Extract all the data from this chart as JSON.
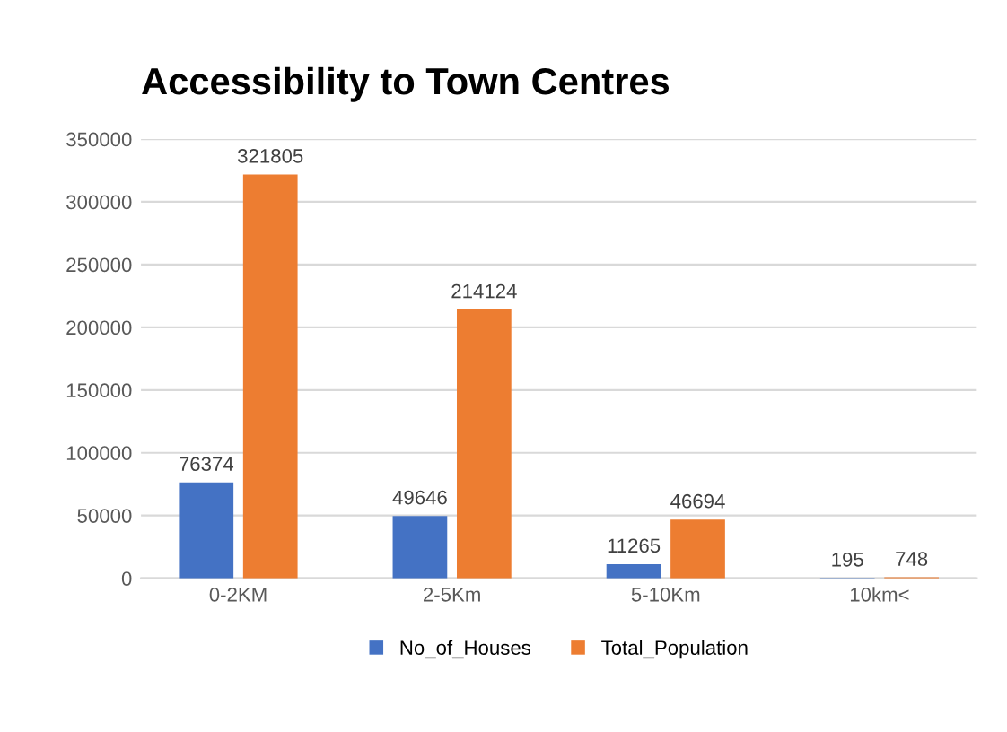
{
  "chart_data": {
    "type": "bar",
    "title": "Accessibility to Town Centres",
    "categories": [
      "0-2KM",
      "2-5Km",
      "5-10Km",
      "10km<"
    ],
    "series": [
      {
        "name": "No_of_Houses",
        "color": "#4472c4",
        "values": [
          76374,
          49646,
          11265,
          195
        ]
      },
      {
        "name": "Total_Population",
        "color": "#ed7d31",
        "values": [
          321805,
          214124,
          46694,
          748
        ]
      }
    ],
    "ylim": [
      0,
      350000
    ],
    "yticks": [
      0,
      50000,
      100000,
      150000,
      200000,
      250000,
      300000,
      350000
    ],
    "grid": "y",
    "legend": "bottom",
    "data_labels": true
  }
}
